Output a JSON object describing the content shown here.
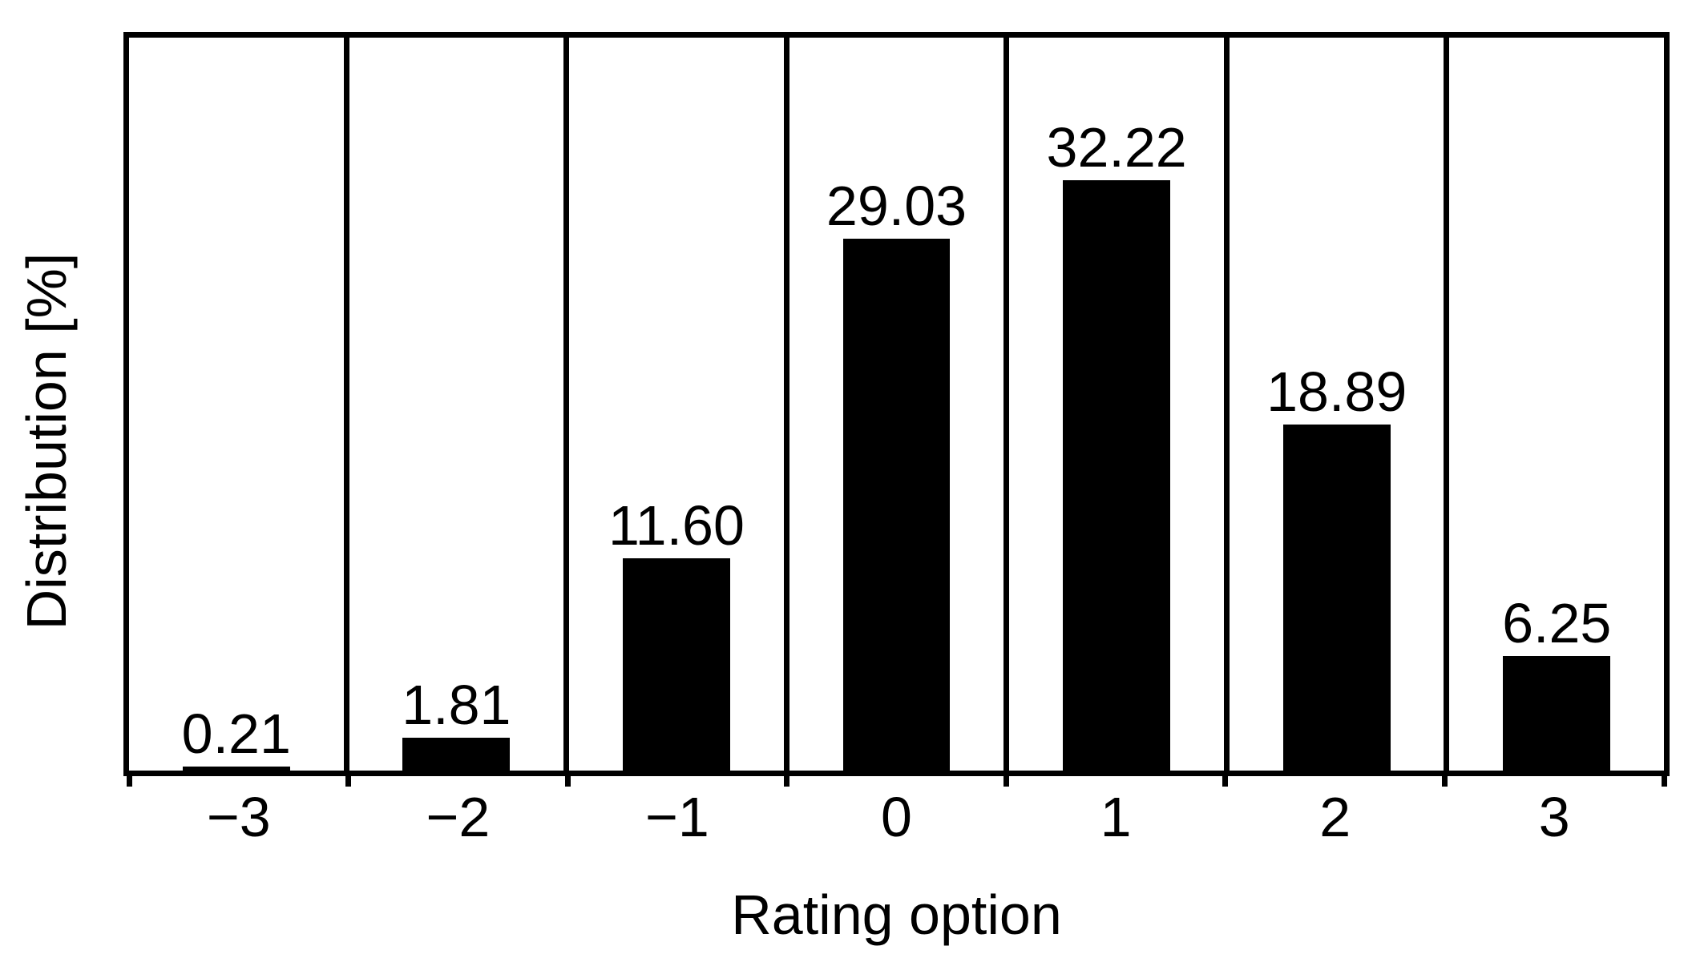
{
  "figure": {
    "background": "#ffffff",
    "foreground": "#000000"
  },
  "chart_data": {
    "type": "bar",
    "title": "",
    "xlabel": "Rating option",
    "ylabel": "Distribution [%]",
    "categories": [
      "−3",
      "−2",
      "−1",
      "0",
      "1",
      "2",
      "3"
    ],
    "values": [
      0.21,
      1.81,
      11.6,
      29.03,
      32.22,
      18.89,
      6.25
    ],
    "value_labels": [
      "0.21",
      "1.81",
      "11.60",
      "29.03",
      "32.22",
      "18.89",
      "6.25"
    ],
    "ylim": [
      0,
      40
    ],
    "bar_color": "#000000",
    "bar_width_fraction_of_cell": 0.5,
    "grid": "vertical category separators only",
    "y_ticks": "none",
    "legend": "none"
  }
}
